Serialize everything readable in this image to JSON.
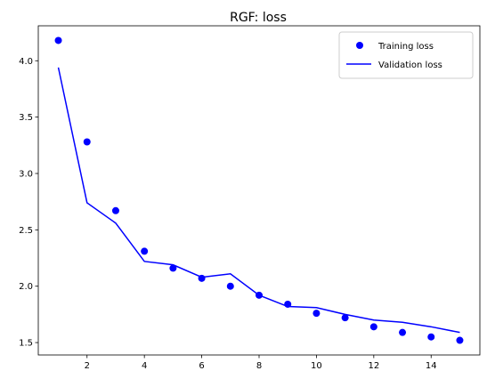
{
  "chart_data": {
    "type": "line",
    "title": "RGF: loss",
    "xlabel": "",
    "ylabel": "",
    "xlim": [
      0.3,
      15.7
    ],
    "ylim": [
      1.39,
      4.31
    ],
    "xticks": [
      2,
      4,
      6,
      8,
      10,
      12,
      14
    ],
    "yticks": [
      1.5,
      2.0,
      2.5,
      3.0,
      3.5,
      4.0
    ],
    "ytick_labels": [
      "1.5",
      "2.0",
      "2.5",
      "3.0",
      "3.5",
      "4.0"
    ],
    "x": [
      1,
      2,
      3,
      4,
      5,
      6,
      7,
      8,
      9,
      10,
      11,
      12,
      13,
      14,
      15
    ],
    "grid": false,
    "legend_position": "top-right",
    "series": [
      {
        "name": "Training loss",
        "style": "markers",
        "color": "#0000ff",
        "values": [
          4.18,
          3.28,
          2.67,
          2.31,
          2.16,
          2.07,
          2.0,
          1.92,
          1.84,
          1.76,
          1.72,
          1.64,
          1.59,
          1.55,
          1.52
        ]
      },
      {
        "name": "Validation loss",
        "style": "line",
        "color": "#0000ff",
        "values": [
          3.94,
          2.74,
          2.56,
          2.22,
          2.19,
          2.08,
          2.11,
          1.92,
          1.82,
          1.81,
          1.75,
          1.7,
          1.68,
          1.64,
          1.59
        ]
      }
    ]
  }
}
